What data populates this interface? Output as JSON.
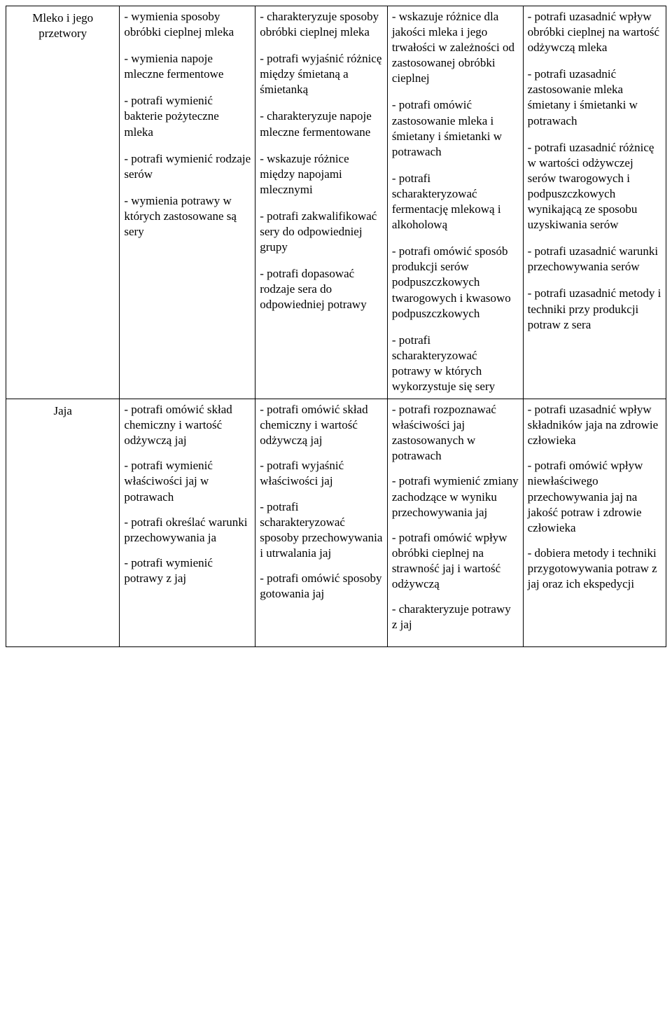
{
  "rows": [
    {
      "topic": "Mleko i jego przetwory",
      "col1": [
        "- wymienia sposoby obróbki cieplnej mleka",
        "- wymienia napoje mleczne fermentowe",
        "- potrafi wymienić bakterie pożyteczne mleka",
        "- potrafi wymienić rodzaje serów",
        "- wymienia potrawy   w których zastosowane są sery"
      ],
      "col2": [
        "- charakteryzuje sposoby obróbki cieplnej mleka",
        "- potrafi wyjaśnić różnicę między śmietaną a śmietanką",
        "- charakteryzuje napoje mleczne fermentowane",
        "- wskazuje różnice  między napojami mlecznymi",
        "- potrafi zakwalifikować sery do odpowiedniej grupy",
        "- potrafi dopasować rodzaje sera do odpowiedniej potrawy"
      ],
      "col3": [
        "- wskazuje różnice dla jakości mleka i jego trwałości w zależności  od zastosowanej obróbki cieplnej",
        "- potrafi omówić zastosowanie mleka i śmietany i śmietanki w potrawach",
        "- potrafi scharakteryzować fermentację mlekową i alkoholową",
        "- potrafi omówić sposób produkcji serów podpuszczkowych twarogowych i kwasowo podpuszczkowych",
        "- potrafi scharakteryzować potrawy w których wykorzystuje się sery"
      ],
      "col4": [
        "- potrafi uzasadnić wpływ obróbki cieplnej na wartość odżywczą mleka",
        "- potrafi uzasadnić zastosowanie mleka śmietany i śmietanki w potrawach",
        "- potrafi uzasadnić różnicę w wartości odżywczej  serów twarogowych i podpuszczkowych wynikającą ze sposobu uzyskiwania  serów",
        "- potrafi uzasadnić warunki przechowywania serów",
        "- potrafi uzasadnić metody i techniki przy produkcji potraw z sera"
      ]
    },
    {
      "topic": "Jaja",
      "col1": [
        "- potrafi omówić skład chemiczny i wartość odżywczą  jaj",
        "- potrafi  wymienić właściwości jaj w potrawach",
        "- potrafi określać warunki przechowywania ja",
        "- potrafi  wymienić potrawy z jaj"
      ],
      "col2": [
        "- potrafi omówić skład chemiczny  i wartość odżywczą jaj",
        "- potrafi wyjaśnić właściwości jaj",
        "- potrafi scharakteryzować sposoby przechowywania i utrwalania jaj",
        "- potrafi omówić sposoby gotowania jaj"
      ],
      "col3": [
        "- potrafi rozpoznawać właściwości jaj zastosowanych w potrawach",
        "- potrafi wymienić zmiany zachodzące w wyniku przechowywania  jaj",
        "- potrafi omówić wpływ obróbki cieplnej na strawność  jaj i wartość odżywczą",
        "- charakteryzuje potrawy z jaj"
      ],
      "col4": [
        "- potrafi uzasadnić wpływ  składników  jaja na zdrowie człowieka",
        "- potrafi omówić wpływ niewłaściwego  przechowywania jaj na  jakość potraw i zdrowie człowieka",
        "- dobiera metody i techniki przygotowywania potraw z jaj oraz ich ekspedycji"
      ]
    }
  ]
}
